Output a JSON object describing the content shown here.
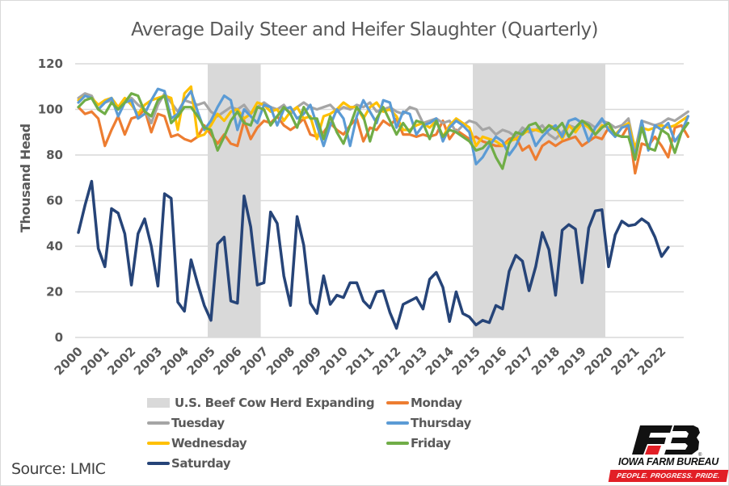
{
  "chart_data": {
    "type": "line",
    "title": "Average Daily Steer and Heifer Slaughter (Quarterly)",
    "xlabel": "",
    "ylabel": "Thousand Head",
    "ylim": [
      0,
      120
    ],
    "yticks": [
      0,
      20,
      40,
      60,
      80,
      100,
      120
    ],
    "xticks": [
      "2000",
      "2001",
      "2002",
      "2003",
      "2004",
      "2005",
      "2006",
      "2007",
      "2008",
      "2009",
      "2010",
      "2011",
      "2012",
      "2013",
      "2014",
      "2015",
      "2016",
      "2017",
      "2018",
      "2019",
      "2020",
      "2021",
      "2022"
    ],
    "x_start": "2000Q1",
    "x_frequency": "quarterly",
    "grid": "horizontal",
    "legend_position": "bottom",
    "shaded_regions": [
      {
        "name": "U.S. Beef Cow Herd Expanding",
        "from": 2005.0,
        "to": 2007.0,
        "color": "#d9d9d9"
      },
      {
        "name": "U.S. Beef Cow Herd Expanding",
        "from": 2015.0,
        "to": 2020.0,
        "color": "#d9d9d9"
      }
    ],
    "series": [
      {
        "name": "Monday",
        "color": "#ed7d31",
        "values": [
          101,
          98,
          99,
          96,
          84,
          91,
          97,
          89,
          96,
          97,
          100,
          90,
          98,
          97,
          88,
          89,
          87,
          86,
          88,
          93,
          89,
          85,
          89,
          85,
          84,
          95,
          87,
          92,
          95,
          94,
          97,
          93,
          91,
          93,
          96,
          89,
          88,
          90,
          94,
          91,
          89,
          93,
          96,
          86,
          92,
          91,
          95,
          93,
          96,
          89,
          89,
          88,
          89,
          88,
          89,
          95,
          87,
          91,
          89,
          87,
          88,
          86,
          85,
          84,
          84,
          87,
          88,
          82,
          84,
          78,
          84,
          86,
          84,
          86,
          87,
          88,
          84,
          86,
          88,
          87,
          92,
          89,
          88,
          93,
          72,
          85,
          84,
          88,
          84,
          79,
          92,
          93,
          88
        ]
      },
      {
        "name": "Tuesday",
        "color": "#a5a5a5",
        "values": [
          105,
          107,
          106,
          100,
          103,
          104,
          100,
          103,
          105,
          102,
          100,
          94,
          102,
          107,
          103,
          99,
          104,
          103,
          102,
          103,
          99,
          97,
          99,
          101,
          100,
          102,
          98,
          101,
          103,
          101,
          100,
          102,
          98,
          101,
          103,
          101,
          100,
          101,
          102,
          99,
          101,
          100,
          102,
          101,
          103,
          99,
          100,
          101,
          99,
          98,
          101,
          100,
          94,
          95,
          96,
          94,
          95,
          90,
          93,
          95,
          94,
          91,
          92,
          89,
          91,
          90,
          88,
          92,
          90,
          91,
          93,
          89,
          87,
          90,
          93,
          92,
          95,
          94,
          92,
          95,
          94,
          92,
          93,
          96,
          82,
          95,
          94,
          93,
          94,
          96,
          95,
          97,
          99
        ]
      },
      {
        "name": "Wednesday",
        "color": "#ffc000",
        "values": [
          104,
          106,
          105,
          102,
          104,
          105,
          101,
          105,
          102,
          98,
          102,
          104,
          105,
          106,
          105,
          91,
          107,
          110,
          88,
          89,
          93,
          98,
          95,
          99,
          100,
          96,
          98,
          103,
          102,
          99,
          100,
          95,
          99,
          101,
          96,
          97,
          87,
          97,
          98,
          100,
          103,
          101,
          101,
          96,
          101,
          103,
          99,
          100,
          97,
          91,
          91,
          93,
          94,
          92,
          95,
          88,
          93,
          96,
          94,
          92,
          84,
          88,
          87,
          86,
          84,
          86,
          87,
          89,
          91,
          91,
          90,
          93,
          92,
          87,
          93,
          90,
          94,
          92,
          89,
          93,
          92,
          89,
          92,
          94,
          83,
          92,
          91,
          92,
          93,
          92,
          93,
          95,
          97
        ]
      },
      {
        "name": "Thursday",
        "color": "#5b9bd5",
        "values": [
          103,
          106,
          105,
          100,
          103,
          105,
          97,
          103,
          104,
          96,
          98,
          104,
          109,
          108,
          96,
          98,
          104,
          108,
          99,
          91,
          95,
          101,
          106,
          104,
          91,
          100,
          97,
          94,
          102,
          101,
          93,
          100,
          101,
          96,
          98,
          102,
          93,
          84,
          93,
          100,
          96,
          84,
          97,
          104,
          99,
          94,
          104,
          103,
          92,
          99,
          98,
          89,
          93,
          94,
          96,
          86,
          92,
          95,
          93,
          90,
          76,
          79,
          84,
          88,
          86,
          80,
          84,
          90,
          92,
          84,
          88,
          91,
          93,
          88,
          95,
          96,
          94,
          86,
          92,
          96,
          91,
          88,
          92,
          93,
          79,
          95,
          82,
          93,
          91,
          94,
          86,
          90,
          97
        ]
      },
      {
        "name": "Friday",
        "color": "#70ad47",
        "values": [
          101,
          104,
          105,
          100,
          98,
          103,
          100,
          103,
          107,
          106,
          99,
          97,
          104,
          106,
          94,
          97,
          101,
          101,
          97,
          92,
          91,
          82,
          88,
          95,
          99,
          94,
          93,
          101,
          100,
          93,
          97,
          101,
          98,
          92,
          101,
          96,
          96,
          87,
          97,
          90,
          85,
          93,
          101,
          97,
          86,
          96,
          101,
          95,
          89,
          94,
          90,
          95,
          94,
          87,
          95,
          88,
          91,
          90,
          88,
          86,
          82,
          83,
          86,
          79,
          74,
          85,
          90,
          89,
          93,
          94,
          90,
          93,
          91,
          94,
          88,
          92,
          95,
          93,
          89,
          92,
          94,
          89,
          88,
          88,
          78,
          92,
          83,
          82,
          91,
          89,
          81,
          90,
          94
        ]
      },
      {
        "name": "Saturday",
        "color": "#264478",
        "values": [
          46,
          58,
          68.5,
          39,
          31,
          56.5,
          54.5,
          45.5,
          23,
          45.5,
          52,
          40,
          22.5,
          63,
          61,
          15.5,
          11.5,
          34,
          23.5,
          14,
          7.5,
          41,
          44,
          16,
          15,
          62,
          48.5,
          23,
          24,
          55,
          50,
          27,
          14,
          53,
          40.5,
          15,
          10.5,
          27,
          14.5,
          18.5,
          17.5,
          24,
          24,
          16,
          13,
          20,
          20.5,
          11,
          4,
          14.5,
          16,
          17.5,
          12.5,
          25.5,
          28.5,
          22,
          7,
          20,
          10.5,
          9,
          5.5,
          7.5,
          6.5,
          14,
          12.5,
          29,
          36,
          33.5,
          20.5,
          31,
          46,
          38.5,
          18.5,
          47,
          49.5,
          47.5,
          24,
          48,
          55.5,
          56,
          31,
          45,
          51,
          49,
          49.5,
          52,
          50,
          44,
          35.5,
          39.5
        ]
      }
    ]
  },
  "legend": {
    "shade_label": "U.S. Beef Cow Herd Expanding",
    "monday": "Monday",
    "tuesday": "Tuesday",
    "thursday": "Thursday",
    "wednesday": "Wednesday",
    "friday": "Friday",
    "saturday": "Saturday"
  },
  "source": "Source: LMIC",
  "logo": {
    "name": "IOWA FARM BUREAU",
    "tagline": "PEOPLE. PROGRESS. PRIDE.",
    "brand_red": "#e21f26"
  }
}
